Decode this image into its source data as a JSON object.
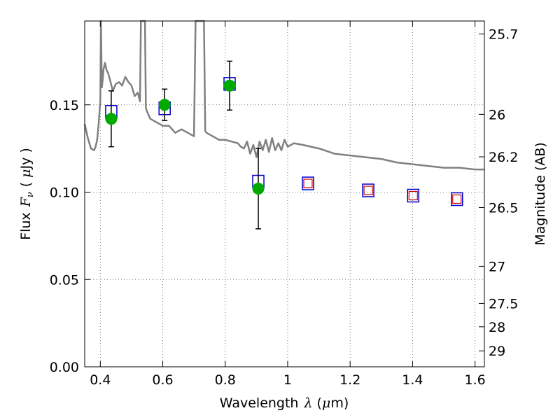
{
  "chart_data": {
    "type": "scatter",
    "xlabel_text": "Wavelength",
    "xlabel_sym": "λ",
    "xlabel_unit_pre": "(",
    "xlabel_mu": "μ",
    "xlabel_unit_post": "m)",
    "ylabel_text": "Flux",
    "ylabel_sym": "F",
    "ylabel_sub": "ν",
    "ylabel_unit_pre": "(",
    "ylabel_mu": "μ",
    "ylabel_unit_post": "Jy )",
    "y2label": "Magnitude (AB)",
    "xlim": [
      0.35,
      1.63
    ],
    "ylim": [
      0.0,
      0.198
    ],
    "grid": true,
    "x_ticks": [
      {
        "v": 0.4,
        "label": "0.4"
      },
      {
        "v": 0.6,
        "label": "0.6"
      },
      {
        "v": 0.8,
        "label": "0.8"
      },
      {
        "v": 1.0,
        "label": "1"
      },
      {
        "v": 1.2,
        "label": "1.2"
      },
      {
        "v": 1.4,
        "label": "1.4"
      },
      {
        "v": 1.6,
        "label": "1.6"
      }
    ],
    "y_ticks": [
      {
        "v": 0.0,
        "label": "0.00"
      },
      {
        "v": 0.05,
        "label": "0.05"
      },
      {
        "v": 0.1,
        "label": "0.10"
      },
      {
        "v": 0.15,
        "label": "0.15"
      }
    ],
    "mag_ticks": [
      {
        "v": 25.7,
        "label": "25.7"
      },
      {
        "v": 26.0,
        "label": "26"
      },
      {
        "v": 26.2,
        "label": "26.2"
      },
      {
        "v": 26.5,
        "label": "26.5"
      },
      {
        "v": 27.0,
        "label": "27"
      },
      {
        "v": 27.5,
        "label": "27.5"
      },
      {
        "v": 28.0,
        "label": "28"
      },
      {
        "v": 29.0,
        "label": "29"
      }
    ],
    "model_spectrum": {
      "color": "#808080",
      "x": [
        0.35,
        0.36,
        0.37,
        0.38,
        0.385,
        0.39,
        0.395,
        0.4,
        0.402,
        0.405,
        0.408,
        0.41,
        0.415,
        0.42,
        0.425,
        0.43,
        0.44,
        0.45,
        0.46,
        0.47,
        0.48,
        0.49,
        0.5,
        0.51,
        0.52,
        0.527,
        0.53,
        0.533,
        0.536,
        0.54,
        0.543,
        0.546,
        0.55,
        0.56,
        0.58,
        0.6,
        0.62,
        0.64,
        0.66,
        0.68,
        0.7,
        0.705,
        0.708,
        0.712,
        0.716,
        0.72,
        0.725,
        0.728,
        0.732,
        0.736,
        0.74,
        0.76,
        0.78,
        0.8,
        0.82,
        0.84,
        0.85,
        0.86,
        0.87,
        0.88,
        0.89,
        0.9,
        0.91,
        0.92,
        0.93,
        0.94,
        0.95,
        0.96,
        0.97,
        0.98,
        0.99,
        1.0,
        1.02,
        1.05,
        1.1,
        1.15,
        1.2,
        1.25,
        1.3,
        1.35,
        1.4,
        1.45,
        1.5,
        1.55,
        1.6,
        1.63
      ],
      "y": [
        0.139,
        0.131,
        0.125,
        0.124,
        0.126,
        0.13,
        0.14,
        0.152,
        0.198,
        0.16,
        0.165,
        0.17,
        0.174,
        0.17,
        0.168,
        0.165,
        0.158,
        0.162,
        0.163,
        0.161,
        0.166,
        0.163,
        0.161,
        0.155,
        0.157,
        0.152,
        0.198,
        0.198,
        0.198,
        0.198,
        0.198,
        0.148,
        0.146,
        0.142,
        0.14,
        0.138,
        0.138,
        0.134,
        0.136,
        0.134,
        0.132,
        0.198,
        0.198,
        0.198,
        0.198,
        0.198,
        0.198,
        0.198,
        0.198,
        0.135,
        0.134,
        0.132,
        0.13,
        0.13,
        0.129,
        0.128,
        0.126,
        0.125,
        0.129,
        0.122,
        0.127,
        0.12,
        0.129,
        0.124,
        0.13,
        0.123,
        0.131,
        0.124,
        0.128,
        0.124,
        0.13,
        0.126,
        0.128,
        0.127,
        0.125,
        0.122,
        0.121,
        0.12,
        0.119,
        0.117,
        0.116,
        0.115,
        0.114,
        0.114,
        0.113,
        0.113
      ]
    },
    "series": [
      {
        "kind": "open-square",
        "color": "#0000cc",
        "x": [
          0.435,
          0.606,
          0.814,
          0.906,
          1.065,
          1.258,
          1.402,
          1.542
        ],
        "y": [
          0.146,
          0.148,
          0.162,
          0.106,
          0.105,
          0.101,
          0.098,
          0.096
        ]
      },
      {
        "kind": "open-square-small",
        "color": "#cc0000",
        "x": [
          1.065,
          1.258,
          1.402,
          1.542
        ],
        "y": [
          0.105,
          0.101,
          0.098,
          0.096
        ]
      },
      {
        "kind": "filled-circle",
        "color": "#00aa00",
        "x": [
          0.435,
          0.606,
          0.814,
          0.906
        ],
        "y": [
          0.142,
          0.15,
          0.161,
          0.102
        ],
        "err": [
          0.016,
          0.009,
          0.014,
          0.023
        ]
      }
    ]
  }
}
